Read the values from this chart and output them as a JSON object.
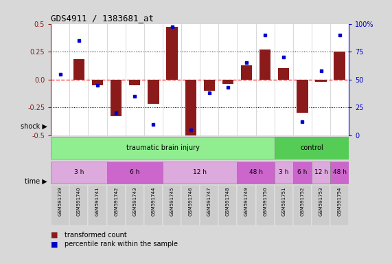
{
  "title": "GDS4911 / 1383681_at",
  "samples": [
    "GSM591739",
    "GSM591740",
    "GSM591741",
    "GSM591742",
    "GSM591743",
    "GSM591744",
    "GSM591745",
    "GSM591746",
    "GSM591747",
    "GSM591748",
    "GSM591749",
    "GSM591750",
    "GSM591751",
    "GSM591752",
    "GSM591753",
    "GSM591754"
  ],
  "bar_values": [
    0.0,
    0.18,
    -0.05,
    -0.33,
    -0.05,
    -0.22,
    0.47,
    -0.5,
    -0.1,
    -0.04,
    0.13,
    0.27,
    0.1,
    -0.3,
    -0.02,
    0.25
  ],
  "dot_values": [
    55,
    85,
    45,
    20,
    35,
    10,
    97,
    5,
    38,
    43,
    65,
    90,
    70,
    12,
    58,
    90
  ],
  "ylim": [
    -0.5,
    0.5
  ],
  "yticks": [
    -0.5,
    -0.25,
    0.0,
    0.25,
    0.5
  ],
  "y2ticks": [
    0,
    25,
    50,
    75,
    100
  ],
  "hlines": [
    0.25,
    -0.25
  ],
  "bar_color": "#8B1A1A",
  "dot_color": "#0000CC",
  "zero_line_color": "#FF4444",
  "background_color": "#D8D8D8",
  "plot_bg": "#FFFFFF",
  "shock_tbi_color": "#90EE90",
  "shock_ctrl_color": "#55CC55",
  "time_colors": [
    "#DDAADD",
    "#CC66CC",
    "#DDAADD",
    "#CC66CC",
    "#DDAADD",
    "#CC66CC",
    "#DDAADD",
    "#CC66CC"
  ],
  "time_groups": [
    {
      "label": "3 h",
      "start": 0,
      "end": 3
    },
    {
      "label": "6 h",
      "start": 3,
      "end": 6
    },
    {
      "label": "12 h",
      "start": 6,
      "end": 10
    },
    {
      "label": "48 h",
      "start": 10,
      "end": 12
    },
    {
      "label": "3 h",
      "start": 12,
      "end": 13
    },
    {
      "label": "6 h",
      "start": 13,
      "end": 14
    },
    {
      "label": "12 h",
      "start": 14,
      "end": 15
    },
    {
      "label": "48 h",
      "start": 15,
      "end": 16
    }
  ],
  "legend_bar": "transformed count",
  "legend_dot": "percentile rank within the sample"
}
